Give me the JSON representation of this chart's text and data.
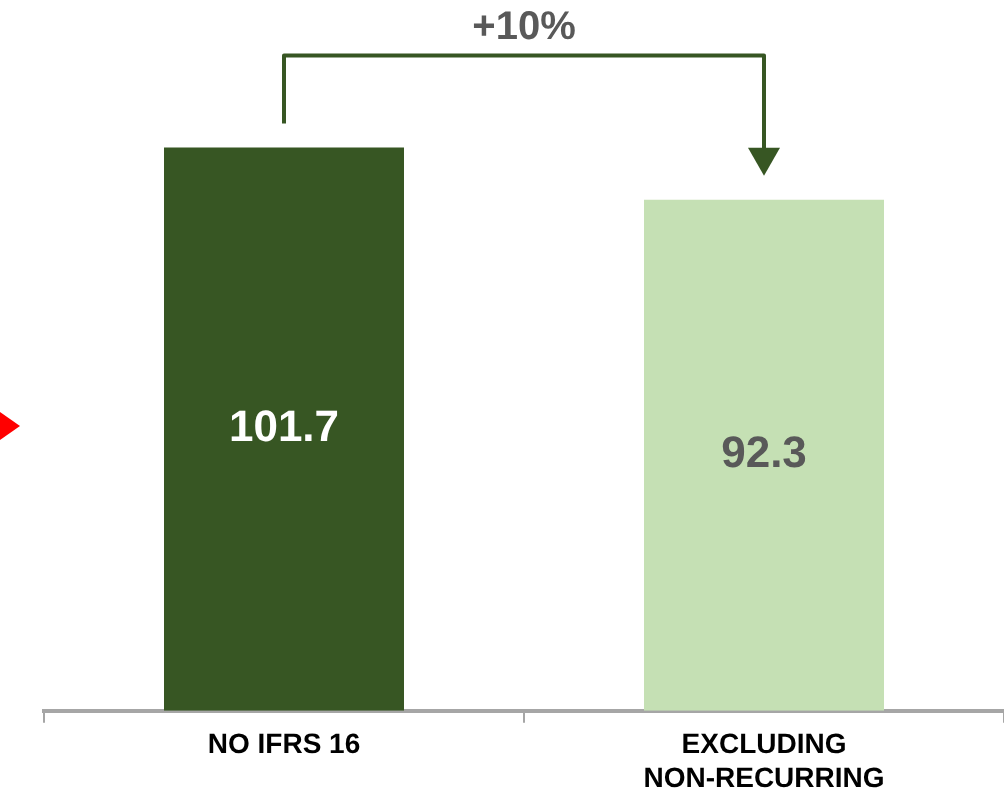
{
  "chart_data": {
    "type": "bar",
    "categories": [
      "NO IFRS 16",
      "EXCLUDING NON-RECURRING"
    ],
    "values": [
      101.7,
      92.3
    ],
    "colors": [
      "#375623",
      "#c5e0b4"
    ],
    "data_labels": true,
    "annotations": [
      "+10%"
    ]
  }
}
